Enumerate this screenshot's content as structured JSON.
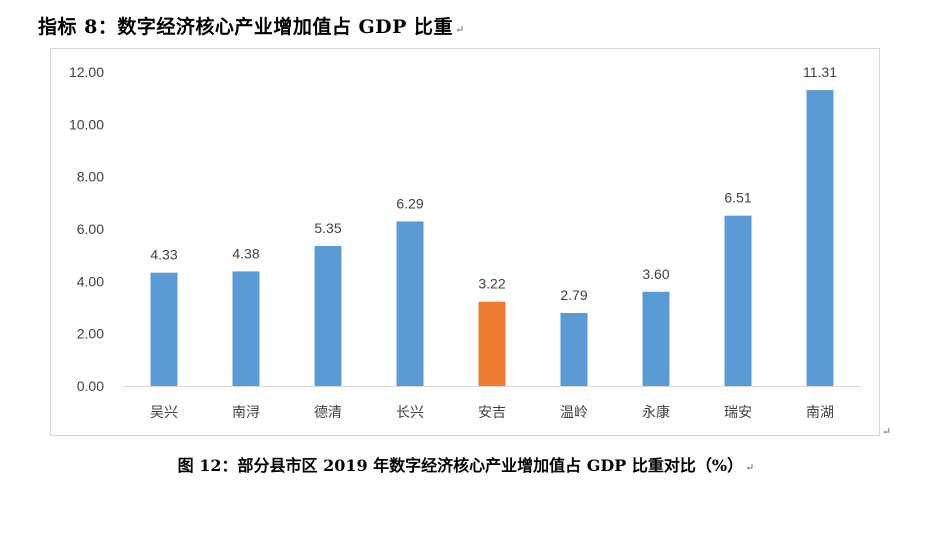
{
  "header": {
    "title": "指标 8：数字经济核心产业增加值占 GDP 比重",
    "mark": "↵"
  },
  "caption": {
    "text": "图 12：部分县市区 2019 年数字经济核心产业增加值占 GDP 比重对比（%）",
    "mark": "↵"
  },
  "para_mark": "↵",
  "chart_data": {
    "type": "bar",
    "title": "",
    "xlabel": "",
    "ylabel": "",
    "categories": [
      "吴兴",
      "南浔",
      "德清",
      "长兴",
      "安吉",
      "温岭",
      "永康",
      "瑞安",
      "南湖"
    ],
    "values": [
      4.33,
      4.38,
      5.35,
      6.29,
      3.22,
      2.79,
      3.6,
      6.51,
      11.31
    ],
    "value_labels": [
      "4.33",
      "4.38",
      "5.35",
      "6.29",
      "3.22",
      "2.79",
      "3.60",
      "6.51",
      "11.31"
    ],
    "highlight_index": 4,
    "ylim": [
      0,
      12
    ],
    "yticks": [
      "0.00",
      "2.00",
      "4.00",
      "6.00",
      "8.00",
      "10.00",
      "12.00"
    ],
    "grid": false,
    "legend": "none",
    "colors": {
      "bar": "#5B9BD5",
      "highlight": "#ED7D31",
      "axis": "#d9d9d9",
      "label": "#404040"
    }
  }
}
